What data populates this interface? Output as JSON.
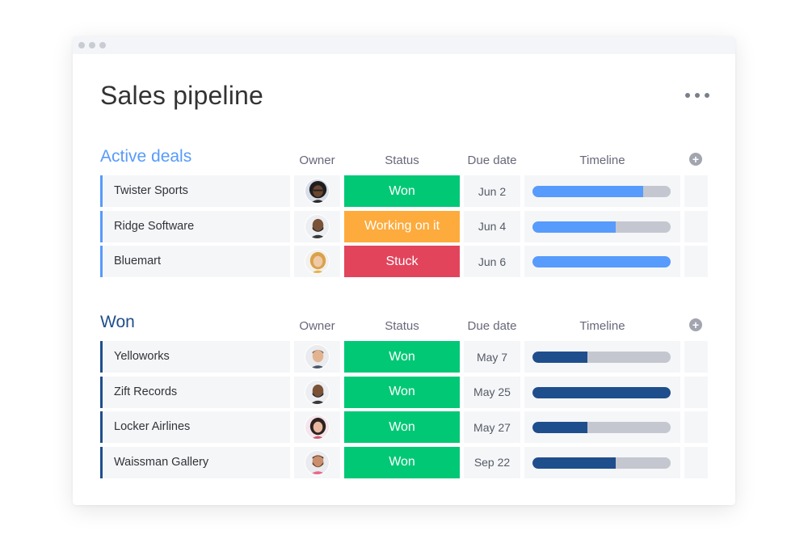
{
  "page": {
    "title": "Sales pipeline"
  },
  "colors": {
    "active_accent": "#579bfc",
    "won_accent": "#1f4e8c",
    "won_status": "#00c875",
    "working_status": "#fdab3d",
    "stuck_status": "#e2445c"
  },
  "columns": {
    "owner": "Owner",
    "status": "Status",
    "due_date": "Due date",
    "timeline": "Timeline"
  },
  "groups": [
    {
      "title": "Active deals",
      "accent": "#579bfc",
      "rows": [
        {
          "name": "Twister Sports",
          "status": "Won",
          "status_color": "#00c875",
          "due": "Jun 2",
          "progress": 0.8,
          "avatar": "woman-dark-hair-glasses"
        },
        {
          "name": "Ridge Software",
          "status": "Working on it",
          "status_color": "#fdab3d",
          "due": "Jun 4",
          "progress": 0.6,
          "avatar": "man-bald-beard"
        },
        {
          "name": "Bluemart",
          "status": "Stuck",
          "status_color": "#e2445c",
          "due": "Jun 6",
          "progress": 1.0,
          "avatar": "woman-blonde"
        }
      ]
    },
    {
      "title": "Won",
      "accent": "#1f4e8c",
      "rows": [
        {
          "name": "Yelloworks",
          "status": "Won",
          "status_color": "#00c875",
          "due": "May 7",
          "progress": 0.4,
          "avatar": "man-short-hair"
        },
        {
          "name": "Zift Records",
          "status": "Won",
          "status_color": "#00c875",
          "due": "May 25",
          "progress": 1.0,
          "avatar": "man-bald-beard"
        },
        {
          "name": "Locker Airlines",
          "status": "Won",
          "status_color": "#00c875",
          "due": "May 27",
          "progress": 0.4,
          "avatar": "woman-dark-hair"
        },
        {
          "name": "Waissman Gallery",
          "status": "Won",
          "status_color": "#00c875",
          "due": "Sep 22",
          "progress": 0.6,
          "avatar": "man-beard-floral-shirt"
        }
      ]
    }
  ]
}
